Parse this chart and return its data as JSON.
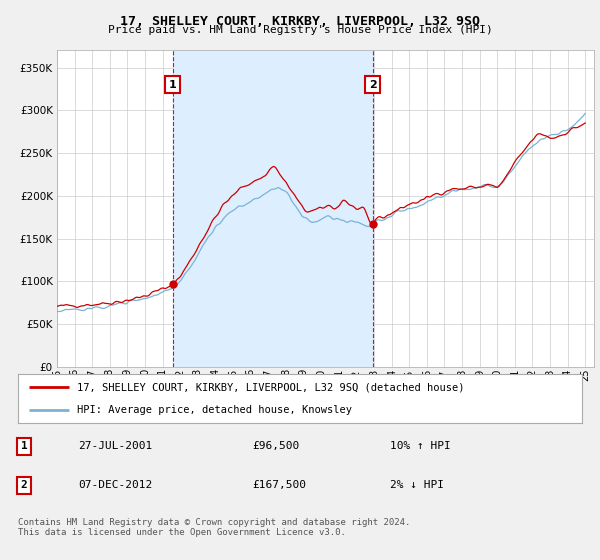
{
  "title": "17, SHELLEY COURT, KIRKBY, LIVERPOOL, L32 9SQ",
  "subtitle": "Price paid vs. HM Land Registry's House Price Index (HPI)",
  "legend_line1": "17, SHELLEY COURT, KIRKBY, LIVERPOOL, L32 9SQ (detached house)",
  "legend_line2": "HPI: Average price, detached house, Knowsley",
  "transaction1_label": "1",
  "transaction1_date": "27-JUL-2001",
  "transaction1_price": "£96,500",
  "transaction1_hpi": "10% ↑ HPI",
  "transaction1_year": 2001.57,
  "transaction1_value": 96500,
  "transaction2_label": "2",
  "transaction2_date": "07-DEC-2012",
  "transaction2_price": "£167,500",
  "transaction2_hpi": "2% ↓ HPI",
  "transaction2_year": 2012.93,
  "transaction2_value": 167500,
  "red_color": "#cc0000",
  "blue_color": "#7ab3d4",
  "shade_color": "#ddeeff",
  "vline_color": "#cc0000",
  "background_color": "#f0f0f0",
  "plot_background": "#ffffff",
  "grid_color": "#cccccc",
  "footer": "Contains HM Land Registry data © Crown copyright and database right 2024.\nThis data is licensed under the Open Government Licence v3.0.",
  "ylim": [
    0,
    370000
  ],
  "xlim_start": 1995,
  "xlim_end": 2025.5,
  "yticks": [
    0,
    50000,
    100000,
    150000,
    200000,
    250000,
    300000,
    350000
  ],
  "ytick_labels": [
    "£0",
    "£50K",
    "£100K",
    "£150K",
    "£200K",
    "£250K",
    "£300K",
    "£350K"
  ]
}
